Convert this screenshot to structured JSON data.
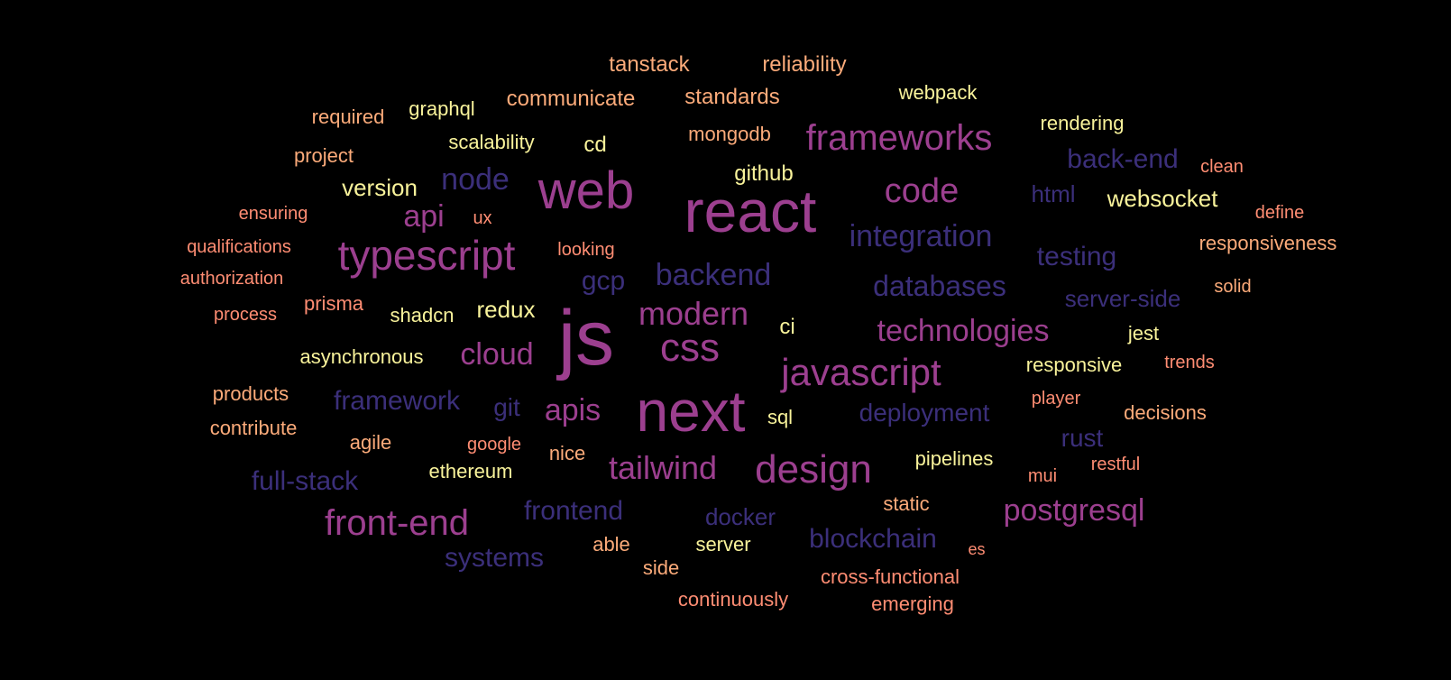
{
  "colors": {
    "background": "#000000",
    "tier_largest": "#9c3f8f",
    "tier_indigo": "#3b2f7a",
    "tier_yellow": "#f9f39b",
    "tier_orange": "#fcab7a",
    "tier_coral": "#ff8d73"
  },
  "words": [
    {
      "text": "tanstack"
    },
    {
      "text": "reliability"
    },
    {
      "text": "webpack"
    },
    {
      "text": "communicate"
    },
    {
      "text": "standards"
    },
    {
      "text": "required"
    },
    {
      "text": "graphql"
    },
    {
      "text": "rendering"
    },
    {
      "text": "mongodb"
    },
    {
      "text": "frameworks"
    },
    {
      "text": "scalability"
    },
    {
      "text": "cd"
    },
    {
      "text": "project"
    },
    {
      "text": "back-end"
    },
    {
      "text": "clean"
    },
    {
      "text": "github"
    },
    {
      "text": "node"
    },
    {
      "text": "web"
    },
    {
      "text": "version"
    },
    {
      "text": "code"
    },
    {
      "text": "html"
    },
    {
      "text": "websocket"
    },
    {
      "text": "react"
    },
    {
      "text": "ensuring"
    },
    {
      "text": "define"
    },
    {
      "text": "api"
    },
    {
      "text": "ux"
    },
    {
      "text": "integration"
    },
    {
      "text": "qualifications"
    },
    {
      "text": "responsiveness"
    },
    {
      "text": "looking"
    },
    {
      "text": "typescript"
    },
    {
      "text": "testing"
    },
    {
      "text": "authorization"
    },
    {
      "text": "gcp"
    },
    {
      "text": "backend"
    },
    {
      "text": "databases"
    },
    {
      "text": "solid"
    },
    {
      "text": "server-side"
    },
    {
      "text": "prisma"
    },
    {
      "text": "process"
    },
    {
      "text": "shadcn"
    },
    {
      "text": "redux"
    },
    {
      "text": "modern"
    },
    {
      "text": "ci"
    },
    {
      "text": "technologies"
    },
    {
      "text": "js"
    },
    {
      "text": "jest"
    },
    {
      "text": "asynchronous"
    },
    {
      "text": "cloud"
    },
    {
      "text": "css"
    },
    {
      "text": "javascript"
    },
    {
      "text": "trends"
    },
    {
      "text": "responsive"
    },
    {
      "text": "products"
    },
    {
      "text": "framework"
    },
    {
      "text": "git"
    },
    {
      "text": "apis"
    },
    {
      "text": "next"
    },
    {
      "text": "sql"
    },
    {
      "text": "deployment"
    },
    {
      "text": "player"
    },
    {
      "text": "decisions"
    },
    {
      "text": "contribute"
    },
    {
      "text": "agile"
    },
    {
      "text": "google"
    },
    {
      "text": "nice"
    },
    {
      "text": "rust"
    },
    {
      "text": "tailwind"
    },
    {
      "text": "design"
    },
    {
      "text": "pipelines"
    },
    {
      "text": "restful"
    },
    {
      "text": "full-stack"
    },
    {
      "text": "ethereum"
    },
    {
      "text": "mui"
    },
    {
      "text": "front-end"
    },
    {
      "text": "frontend"
    },
    {
      "text": "docker"
    },
    {
      "text": "static"
    },
    {
      "text": "postgresql"
    },
    {
      "text": "blockchain"
    },
    {
      "text": "systems"
    },
    {
      "text": "able"
    },
    {
      "text": "server"
    },
    {
      "text": "es"
    },
    {
      "text": "side"
    },
    {
      "text": "cross-functional"
    },
    {
      "text": "continuously"
    },
    {
      "text": "emerging"
    }
  ]
}
